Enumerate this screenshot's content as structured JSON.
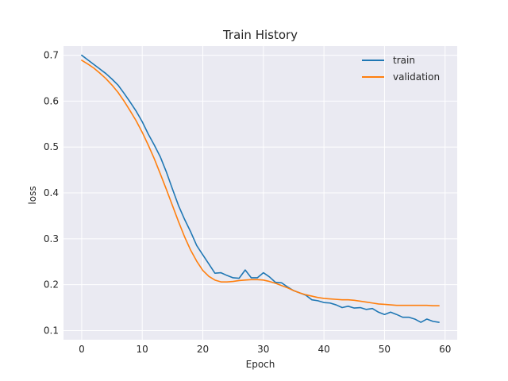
{
  "chart_data": {
    "type": "line",
    "title": "Train History",
    "xlabel": "Epoch",
    "ylabel": "loss",
    "xlim": [
      -3,
      62
    ],
    "ylim": [
      0.08,
      0.72
    ],
    "xticks": [
      0,
      10,
      20,
      30,
      40,
      50,
      60
    ],
    "yticks": [
      0.1,
      0.2,
      0.3,
      0.4,
      0.5,
      0.6,
      0.7
    ],
    "grid": true,
    "legend_position": "upper right",
    "background_color": "#eaeaf2",
    "grid_color": "#ffffff",
    "x": [
      0,
      1,
      2,
      3,
      4,
      5,
      6,
      7,
      8,
      9,
      10,
      11,
      12,
      13,
      14,
      15,
      16,
      17,
      18,
      19,
      20,
      21,
      22,
      23,
      24,
      25,
      26,
      27,
      28,
      29,
      30,
      31,
      32,
      33,
      34,
      35,
      36,
      37,
      38,
      39,
      40,
      41,
      42,
      43,
      44,
      45,
      46,
      47,
      48,
      49,
      50,
      51,
      52,
      53,
      54,
      55,
      56,
      57,
      58,
      59
    ],
    "series": [
      {
        "name": "train",
        "color": "#1f77b4",
        "values": [
          0.7,
          0.69,
          0.68,
          0.67,
          0.66,
          0.648,
          0.635,
          0.617,
          0.598,
          0.578,
          0.555,
          0.528,
          0.504,
          0.478,
          0.445,
          0.408,
          0.372,
          0.342,
          0.315,
          0.285,
          0.265,
          0.245,
          0.225,
          0.226,
          0.22,
          0.215,
          0.214,
          0.232,
          0.215,
          0.215,
          0.226,
          0.217,
          0.205,
          0.204,
          0.195,
          0.187,
          0.182,
          0.177,
          0.167,
          0.165,
          0.161,
          0.16,
          0.156,
          0.15,
          0.153,
          0.149,
          0.15,
          0.146,
          0.148,
          0.14,
          0.135,
          0.14,
          0.135,
          0.129,
          0.129,
          0.125,
          0.118,
          0.125,
          0.12,
          0.118
        ]
      },
      {
        "name": "validation",
        "color": "#ff7f0e",
        "values": [
          0.689,
          0.681,
          0.672,
          0.661,
          0.649,
          0.635,
          0.619,
          0.6,
          0.579,
          0.557,
          0.532,
          0.504,
          0.474,
          0.441,
          0.407,
          0.372,
          0.337,
          0.304,
          0.275,
          0.251,
          0.231,
          0.218,
          0.21,
          0.206,
          0.206,
          0.207,
          0.209,
          0.21,
          0.211,
          0.211,
          0.21,
          0.207,
          0.203,
          0.198,
          0.193,
          0.187,
          0.182,
          0.178,
          0.175,
          0.172,
          0.17,
          0.169,
          0.168,
          0.167,
          0.167,
          0.166,
          0.164,
          0.162,
          0.16,
          0.158,
          0.157,
          0.156,
          0.155,
          0.155,
          0.155,
          0.155,
          0.155,
          0.155,
          0.154,
          0.154
        ]
      }
    ]
  }
}
